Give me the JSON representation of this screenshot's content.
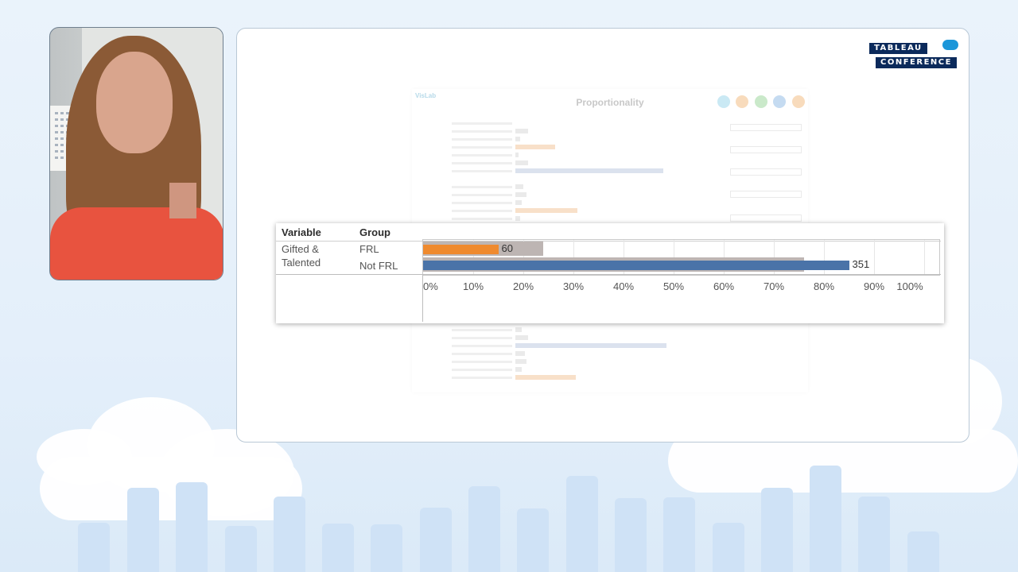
{
  "logo": {
    "line1": "TABLEAU",
    "line2": "CONFERENCE"
  },
  "dashboard": {
    "title": "Proportionality",
    "logo_text": "VisLab"
  },
  "zoom_chart": {
    "headers": {
      "variable": "Variable",
      "group": "Group"
    },
    "variable_line1": "Gifted &",
    "variable_line2": "Talented",
    "colors": {
      "frl": "#ef8a2e",
      "not_frl": "#4a73a8",
      "reference": "#bdb5b3"
    }
  },
  "chart_data": {
    "type": "bar",
    "orientation": "horizontal",
    "categories": [
      "FRL",
      "Not FRL"
    ],
    "series": [
      {
        "values": [
          15,
          85
        ]
      },
      {
        "values": [
          24,
          76
        ]
      }
    ],
    "data_labels": [
      "60",
      "351"
    ],
    "x_ticks": [
      "0%",
      "10%",
      "20%",
      "30%",
      "40%",
      "50%",
      "60%",
      "70%",
      "80%",
      "90%",
      "100%"
    ],
    "xlim": [
      0,
      100
    ],
    "grid": true
  }
}
